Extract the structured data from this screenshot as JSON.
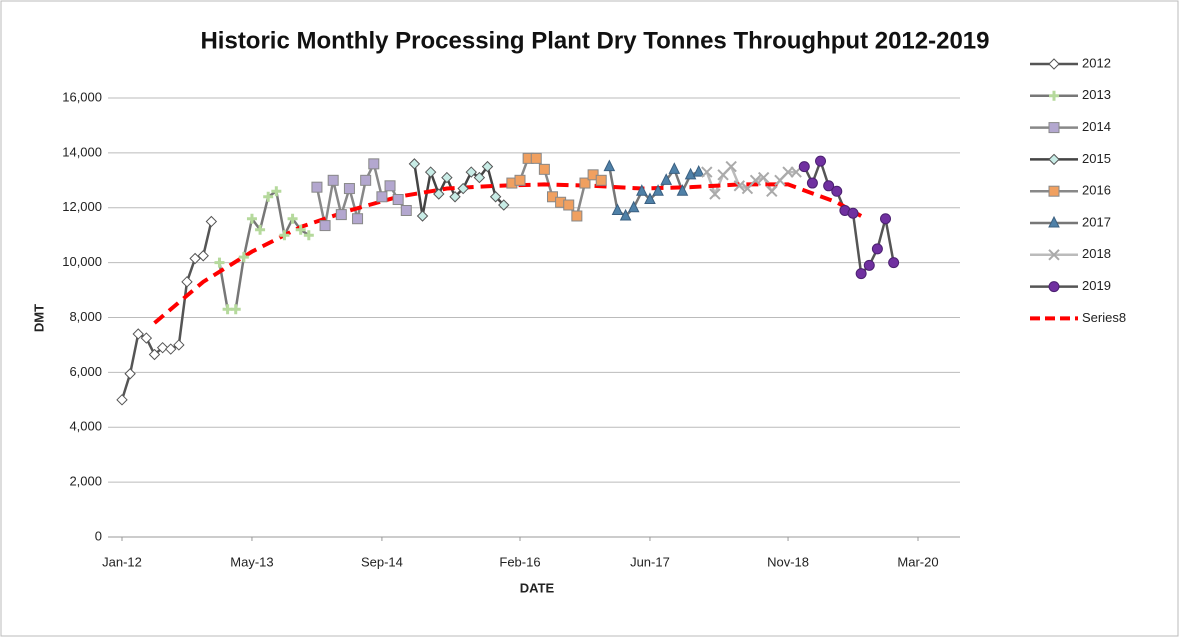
{
  "chart_data": {
    "type": "line",
    "title": "Historic Monthly Processing Plant Dry Tonnes Throughput 2012-2019",
    "xlabel": "DATE",
    "ylabel": "DMT",
    "xlim": [
      "2012-01",
      "2020-03"
    ],
    "xticks": [
      {
        "value": "2012-01",
        "label": "Jan-12"
      },
      {
        "value": "2013-05",
        "label": "May-13"
      },
      {
        "value": "2014-09",
        "label": "Sep-14"
      },
      {
        "value": "2016-02",
        "label": "Feb-16"
      },
      {
        "value": "2017-06",
        "label": "Jun-17"
      },
      {
        "value": "2018-11",
        "label": "Nov-18"
      },
      {
        "value": "2020-03",
        "label": "Mar-20"
      }
    ],
    "ylim": [
      0,
      16000
    ],
    "yticks": [
      0,
      {
        "value": 2000,
        "label": "2,000"
      },
      {
        "value": 4000,
        "label": "4,000"
      },
      {
        "value": 6000,
        "label": "6,000"
      },
      {
        "value": 8000,
        "label": "8,000"
      },
      {
        "value": 10000,
        "label": "10,000"
      },
      {
        "value": 12000,
        "label": "12,000"
      },
      {
        "value": 14000,
        "label": "14,000"
      },
      {
        "value": 16000,
        "label": "16,000"
      }
    ],
    "grid": true,
    "legend": "right",
    "series": [
      {
        "name": "2012",
        "color": "#555555",
        "marker": "diamond",
        "marker_color": "#ffffff",
        "x": [
          "2012-01",
          "2012-02",
          "2012-03",
          "2012-04",
          "2012-05",
          "2012-06",
          "2012-07",
          "2012-08",
          "2012-09",
          "2012-10",
          "2012-11",
          "2012-12"
        ],
        "values": [
          5000,
          5950,
          7400,
          7250,
          6650,
          6900,
          6850,
          7000,
          9300,
          10150,
          10250,
          11500
        ]
      },
      {
        "name": "2013",
        "color": "#777777",
        "marker": "plus",
        "marker_color": "#b5d99c",
        "x": [
          "2013-01",
          "2013-02",
          "2013-03",
          "2013-04",
          "2013-05",
          "2013-06",
          "2013-07",
          "2013-08",
          "2013-09",
          "2013-10",
          "2013-11",
          "2013-12"
        ],
        "values": [
          10000,
          8300,
          8300,
          10200,
          11600,
          11200,
          12400,
          12600,
          11000,
          11600,
          11200,
          11000
        ]
      },
      {
        "name": "2014",
        "color": "#888888",
        "marker": "square",
        "marker_color": "#b3a7cf",
        "x": [
          "2014-01",
          "2014-02",
          "2014-03",
          "2014-04",
          "2014-05",
          "2014-06",
          "2014-07",
          "2014-08",
          "2014-09",
          "2014-10",
          "2014-11",
          "2014-12"
        ],
        "values": [
          12750,
          11350,
          13000,
          11750,
          12700,
          11600,
          13000,
          13600,
          12400,
          12800,
          12300,
          11900
        ]
      },
      {
        "name": "2015",
        "color": "#444444",
        "marker": "diamond",
        "marker_color": "#c8ece6",
        "x": [
          "2015-01",
          "2015-02",
          "2015-03",
          "2015-04",
          "2015-05",
          "2015-06",
          "2015-07",
          "2015-08",
          "2015-09",
          "2015-10",
          "2015-11",
          "2015-12"
        ],
        "values": [
          13600,
          11700,
          13300,
          12500,
          13100,
          12400,
          12700,
          13300,
          13100,
          13500,
          12400,
          12100
        ]
      },
      {
        "name": "2016",
        "color": "#888888",
        "marker": "square",
        "marker_color": "#f0a060",
        "x": [
          "2016-01",
          "2016-02",
          "2016-03",
          "2016-04",
          "2016-05",
          "2016-06",
          "2016-07",
          "2016-08",
          "2016-09",
          "2016-10",
          "2016-11",
          "2016-12"
        ],
        "values": [
          12900,
          13000,
          13800,
          13800,
          13400,
          12400,
          12200,
          12100,
          11700,
          12900,
          13200,
          13000
        ]
      },
      {
        "name": "2017",
        "color": "#777777",
        "marker": "triangle",
        "marker_color": "#4f81a8",
        "x": [
          "2017-01",
          "2017-02",
          "2017-03",
          "2017-04",
          "2017-05",
          "2017-06",
          "2017-07",
          "2017-08",
          "2017-09",
          "2017-10",
          "2017-11",
          "2017-12"
        ],
        "values": [
          13500,
          11900,
          11700,
          12000,
          12600,
          12300,
          12600,
          13000,
          13400,
          12600,
          13200,
          13300
        ]
      },
      {
        "name": "2018",
        "color": "#bbbbbb",
        "marker": "x",
        "marker_color": "#aaaaaa",
        "x": [
          "2018-01",
          "2018-02",
          "2018-03",
          "2018-04",
          "2018-05",
          "2018-06",
          "2018-07",
          "2018-08",
          "2018-09",
          "2018-10",
          "2018-11",
          "2018-12"
        ],
        "values": [
          13300,
          12500,
          13200,
          13500,
          12800,
          12700,
          13000,
          13100,
          12600,
          13000,
          13300,
          13300
        ]
      },
      {
        "name": "2019",
        "color": "#555555",
        "marker": "circle",
        "marker_color": "#7030a0",
        "x": [
          "2019-01",
          "2019-02",
          "2019-03",
          "2019-04",
          "2019-05",
          "2019-06",
          "2019-07",
          "2019-08",
          "2019-09",
          "2019-10",
          "2019-11",
          "2019-12"
        ],
        "values": [
          13500,
          12900,
          13700,
          12800,
          12600,
          11900,
          11800,
          9600,
          9900,
          10500,
          11600,
          10000
        ]
      },
      {
        "name": "Series8",
        "color": "#ff0000",
        "dashed": true,
        "x": [
          "2012-05",
          "2012-11",
          "2013-05",
          "2013-11",
          "2014-05",
          "2014-11",
          "2015-05",
          "2015-11",
          "2016-05",
          "2016-11",
          "2017-05",
          "2017-11",
          "2018-05",
          "2018-11",
          "2019-05",
          "2019-08"
        ],
        "values": [
          7800,
          9300,
          10400,
          11300,
          11900,
          12400,
          12700,
          12800,
          12850,
          12800,
          12700,
          12750,
          12850,
          12850,
          12200,
          11700
        ]
      }
    ]
  }
}
